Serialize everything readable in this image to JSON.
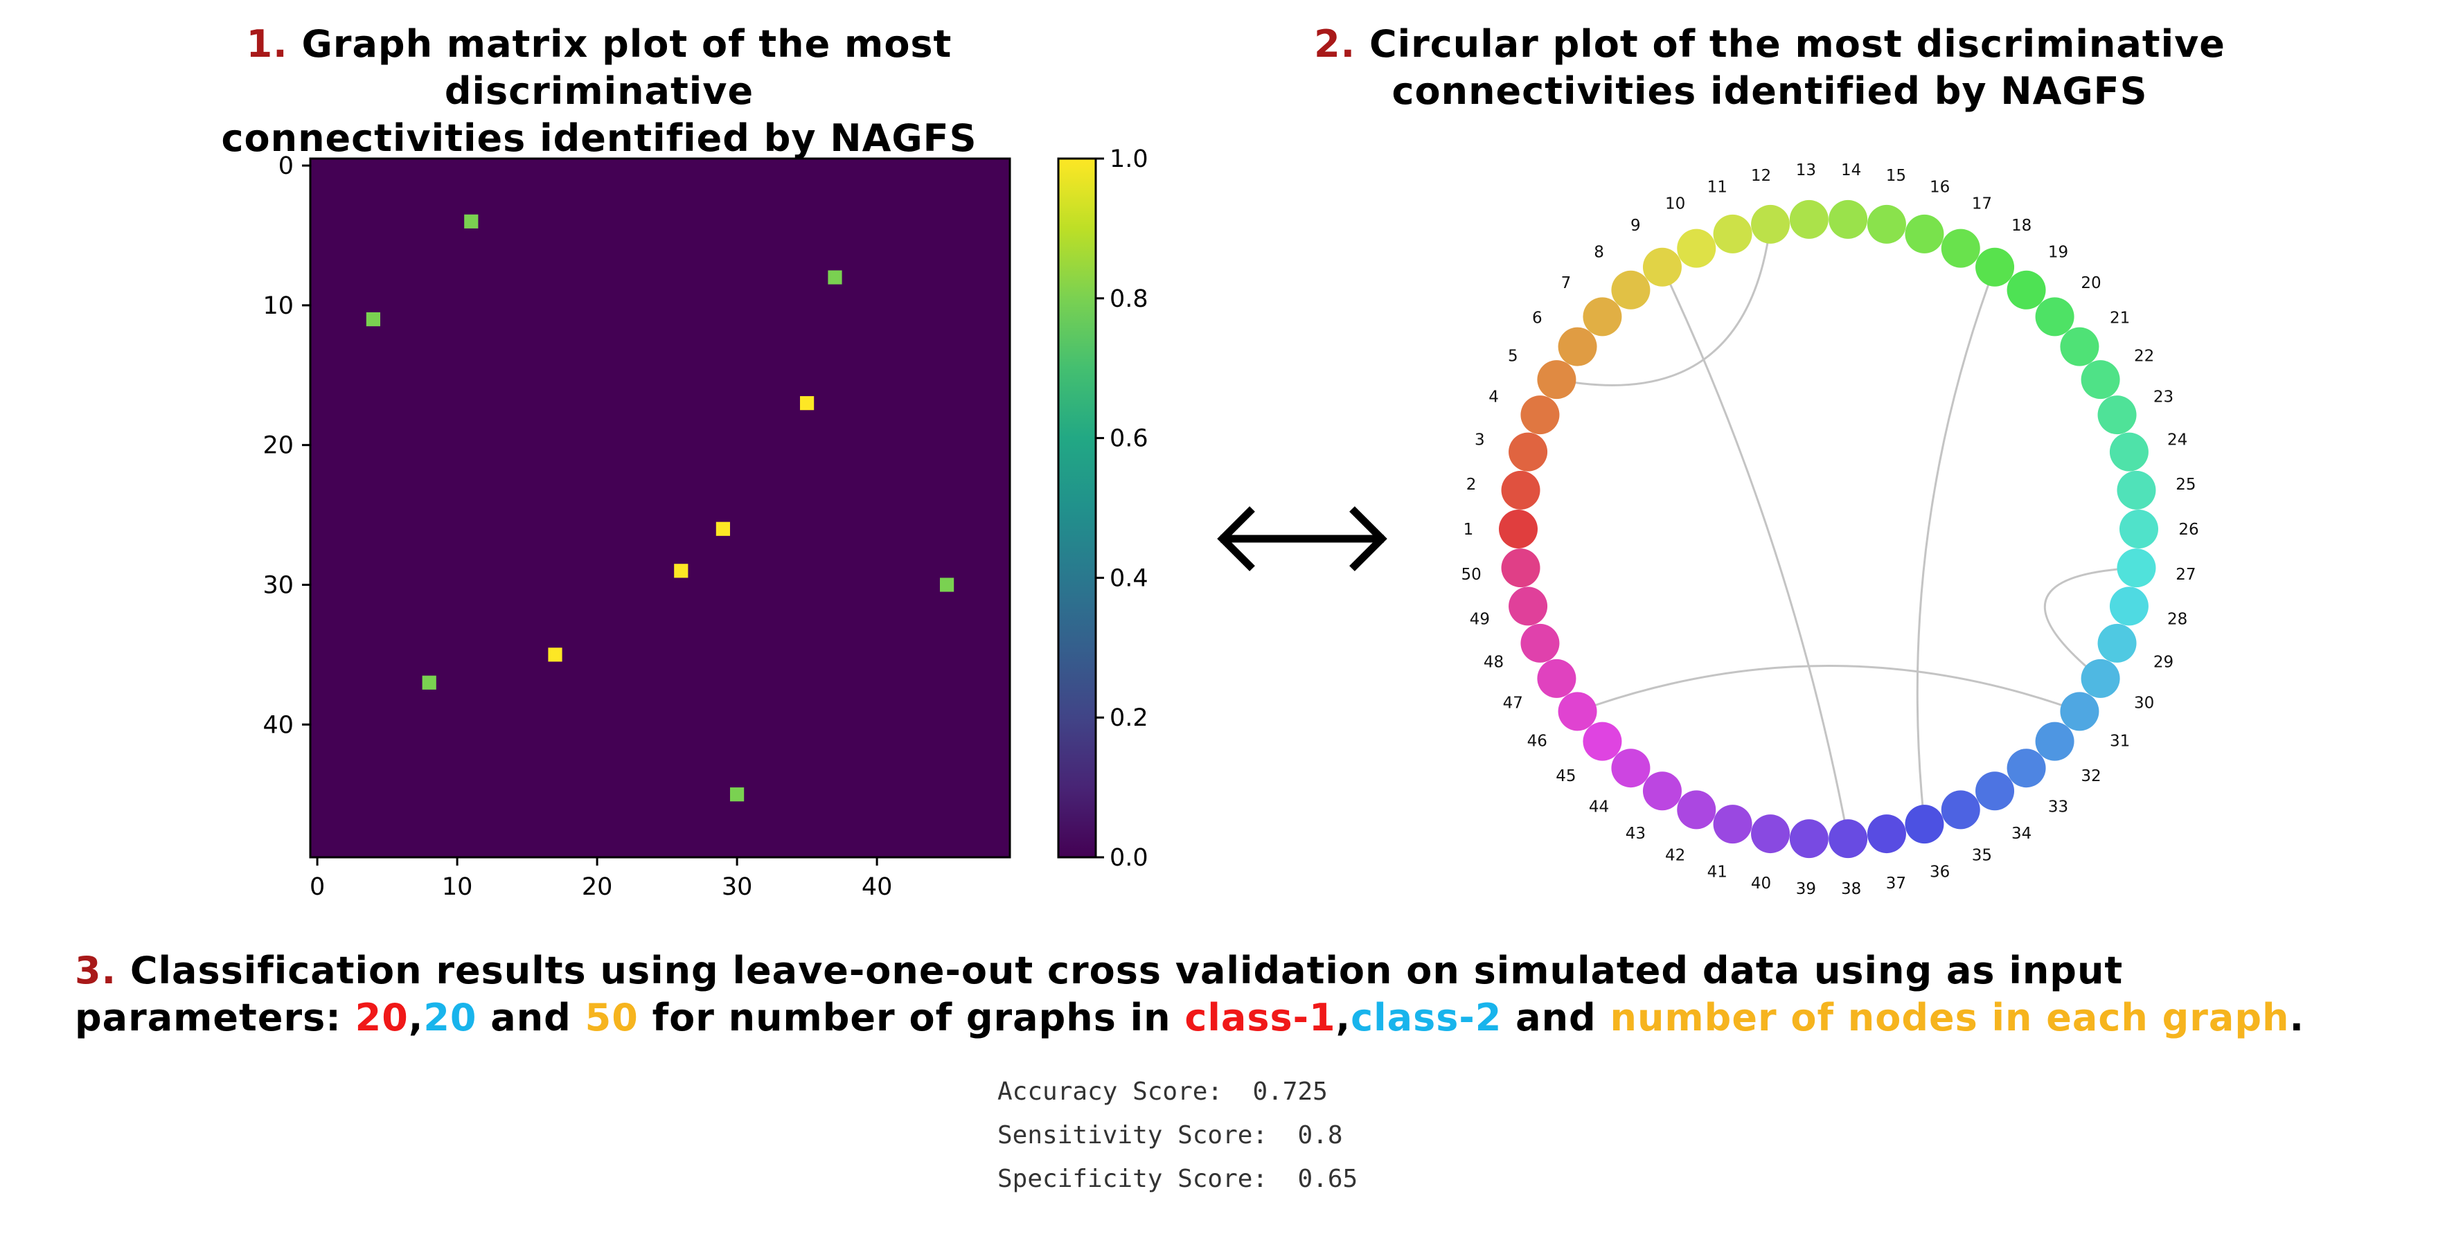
{
  "titles": {
    "left_num": "1.",
    "left_line1": "Graph matrix plot of the most discriminative",
    "left_line2": "connectivities identified by NAGFS",
    "right_num": "2.",
    "right_line1": "Circular plot of the most discriminative",
    "right_line2": "connectivities identified by NAGFS"
  },
  "section3": {
    "num": "3.",
    "text_a": "Classification results using leave-one-out cross validation on simulated data using as input",
    "text_b": "parameters: ",
    "v1": "20",
    "comma": ",",
    "v2": "20",
    "and1": " and ",
    "v3": "50",
    "text_c": " for number of graphs in ",
    "class1": "class-1",
    "comma2": ",",
    "class2": "class-2",
    "and2": " and ",
    "nodes": "number of nodes in each graph",
    "period": "."
  },
  "results": [
    "Accuracy Score:  0.725",
    "Sensitivity Score:  0.8",
    "Specificity Score:  0.65"
  ],
  "chart_data": [
    {
      "type": "heatmap",
      "colormap": "viridis",
      "background_value": 0.0,
      "x_ticks": [
        "0",
        "10",
        "20",
        "30",
        "40"
      ],
      "y_ticks": [
        "0",
        "10",
        "20",
        "30",
        "40"
      ],
      "xlim": [
        -0.5,
        49.5
      ],
      "ylim": [
        49.5,
        -0.5
      ],
      "colorbar_ticks": [
        "0.0",
        "0.2",
        "0.4",
        "0.6",
        "0.8",
        "1.0"
      ],
      "colorbar_range": [
        0,
        1
      ],
      "cells": [
        {
          "row": 4,
          "col": 11,
          "value": 0.8
        },
        {
          "row": 8,
          "col": 37,
          "value": 0.8
        },
        {
          "row": 11,
          "col": 4,
          "value": 0.8
        },
        {
          "row": 17,
          "col": 35,
          "value": 1.0
        },
        {
          "row": 26,
          "col": 29,
          "value": 1.0
        },
        {
          "row": 29,
          "col": 26,
          "value": 1.0
        },
        {
          "row": 30,
          "col": 45,
          "value": 0.8
        },
        {
          "row": 35,
          "col": 17,
          "value": 1.0
        },
        {
          "row": 37,
          "col": 8,
          "value": 0.8
        },
        {
          "row": 45,
          "col": 30,
          "value": 0.8
        }
      ]
    },
    {
      "type": "circular",
      "nodes": [
        "1",
        "2",
        "3",
        "4",
        "5",
        "6",
        "7",
        "8",
        "9",
        "10",
        "11",
        "12",
        "13",
        "14",
        "15",
        "16",
        "17",
        "18",
        "19",
        "20",
        "21",
        "22",
        "23",
        "24",
        "25",
        "26",
        "27",
        "28",
        "29",
        "30",
        "31",
        "32",
        "33",
        "34",
        "35",
        "36",
        "37",
        "38",
        "39",
        "40",
        "41",
        "42",
        "43",
        "44",
        "45",
        "46",
        "47",
        "48",
        "49",
        "50"
      ],
      "edges": [
        [
          5,
          12
        ],
        [
          9,
          38
        ],
        [
          18,
          36
        ],
        [
          27,
          30
        ],
        [
          31,
          46
        ]
      ]
    }
  ],
  "arrow": "double-arrow"
}
